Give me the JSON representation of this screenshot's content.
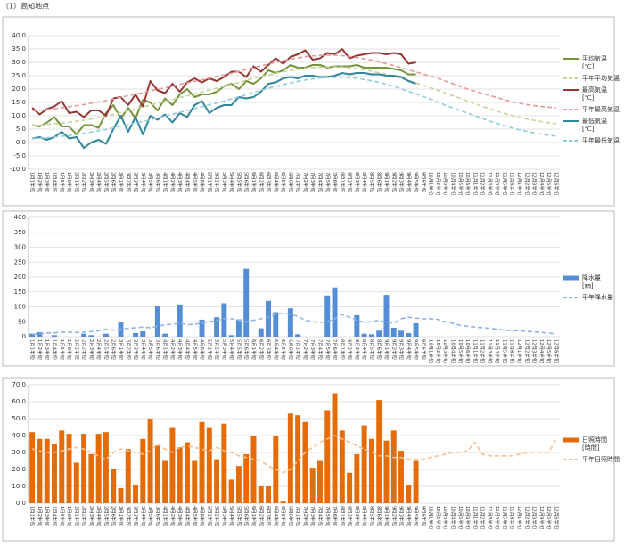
{
  "title": "（1）高知地点",
  "chart_data": [
    {
      "type": "line",
      "ylim": [
        -10,
        40
      ],
      "yticks": [
        {
          "value": 40,
          "label": "40.0"
        },
        {
          "value": 35,
          "label": "35.0"
        },
        {
          "value": 30,
          "label": "30.0"
        },
        {
          "value": 25,
          "label": "25.0"
        },
        {
          "value": 20,
          "label": "20.0"
        },
        {
          "value": 15,
          "label": "15.0"
        },
        {
          "value": 10,
          "label": "10.0"
        },
        {
          "value": 5,
          "label": "5.0"
        },
        {
          "value": 0,
          "label": "0.0"
        },
        {
          "value": -5,
          "label": "-5.0"
        },
        {
          "value": -10,
          "label": "-10.0"
        }
      ],
      "grid": true,
      "categories": [
        "1月1半旬",
        "1月2半旬",
        "1月3半旬",
        "1月4半旬",
        "1月5半旬",
        "1月6半旬",
        "2月1半旬",
        "2月2半旬",
        "2月3半旬",
        "2月4半旬",
        "2月5半旬",
        "2月6半旬",
        "3月1半旬",
        "3月2半旬",
        "3月3半旬",
        "3月4半旬",
        "3月5半旬",
        "3月6半旬",
        "4月1半旬",
        "4月2半旬",
        "4月3半旬",
        "4月4半旬",
        "4月5半旬",
        "4月6半旬",
        "5月1半旬",
        "5月2半旬",
        "5月3半旬",
        "5月4半旬",
        "5月5半旬",
        "5月6半旬",
        "6月1半旬",
        "6月2半旬",
        "6月3半旬",
        "6月4半旬",
        "6月5半旬",
        "6月6半旬",
        "7月1半旬",
        "7月2半旬",
        "7月3半旬",
        "7月4半旬",
        "7月5半旬",
        "7月6半旬",
        "8月1半旬",
        "8月2半旬",
        "8月3半旬",
        "8月4半旬",
        "8月5半旬",
        "8月6半旬",
        "9月1半旬",
        "9月2半旬",
        "9月3半旬",
        "9月4半旬",
        "9月5半旬",
        "9月6半旬",
        "10月1半旬",
        "10月2半旬",
        "10月3半旬",
        "10月4半旬",
        "10月5半旬",
        "10月6半旬",
        "11月1半旬",
        "11月2半旬",
        "11月3半旬",
        "11月4半旬",
        "11月5半旬",
        "11月6半旬",
        "12月1半旬",
        "12月2半旬",
        "12月3半旬",
        "12月4半旬",
        "12月5半旬",
        "12月6半旬"
      ],
      "series": [
        {
          "name": "平均気温",
          "unit": "[℃]",
          "type": "line",
          "dashed": false,
          "color": "#77933c",
          "values": [
            6.5,
            6,
            7.5,
            9.5,
            6,
            6,
            3,
            6.5,
            6.5,
            5.5,
            11,
            14,
            9,
            13,
            9,
            16,
            15,
            12,
            16.5,
            14,
            18,
            20,
            17,
            18,
            18,
            19,
            21,
            22,
            20,
            23,
            22,
            24,
            27,
            26,
            27,
            29,
            28,
            28,
            29,
            29,
            28,
            28.5,
            28.5,
            28.5,
            29,
            28,
            28,
            28,
            28,
            27.5,
            27,
            25.5,
            25.5,
            null,
            null,
            null,
            null,
            null,
            null,
            null,
            null,
            null,
            null,
            null,
            null,
            null,
            null,
            null,
            null,
            null,
            null,
            null
          ]
        },
        {
          "name": "平年平均気温",
          "type": "line",
          "dashed": true,
          "color": "#c3d69b",
          "values": [
            6.5,
            6.5,
            6.8,
            7,
            7.3,
            7.6,
            8,
            8.3,
            8.8,
            9.3,
            9.8,
            10.5,
            11.2,
            11.9,
            12.6,
            13.3,
            14,
            14.7,
            15.4,
            16.1,
            16.8,
            17.5,
            18.2,
            18.9,
            19.6,
            20.3,
            21,
            21.7,
            22.5,
            23.3,
            24,
            24.7,
            25.3,
            25.9,
            26.5,
            27,
            27.4,
            27.8,
            28,
            28.2,
            28.3,
            28.3,
            28.2,
            28,
            27.6,
            27.2,
            26.7,
            26.1,
            25.5,
            24.8,
            24,
            23.2,
            22.3,
            21.4,
            20.5,
            19.5,
            18.5,
            17.5,
            16.5,
            15.5,
            14.5,
            13.5,
            12.6,
            11.7,
            10.9,
            10.1,
            9.4,
            8.8,
            8.3,
            7.8,
            7.4,
            7
          ]
        },
        {
          "name": "最高気温",
          "unit": "[℃]",
          "type": "line",
          "dashed": false,
          "color": "#953735",
          "values": [
            13,
            10.5,
            12.5,
            13.5,
            15.5,
            11,
            11.5,
            9.5,
            12,
            12,
            10,
            16.5,
            17,
            14,
            18,
            13.5,
            23,
            19.5,
            18.5,
            22,
            19,
            22.5,
            24,
            22.5,
            24,
            23,
            24.5,
            26.5,
            26.5,
            24.5,
            28.5,
            26.5,
            29,
            31.5,
            29.5,
            32,
            33,
            34.5,
            31,
            31.5,
            33.5,
            33,
            35,
            31.5,
            32.5,
            33,
            33.5,
            33.5,
            33,
            33.5,
            33,
            29.5,
            30,
            null,
            null,
            null,
            null,
            null,
            null,
            null,
            null,
            null,
            null,
            null,
            null,
            null,
            null,
            null,
            null,
            null,
            null,
            null
          ]
        },
        {
          "name": "平年最高気温",
          "type": "line",
          "dashed": true,
          "color": "#e6999a",
          "values": [
            12,
            12,
            12.3,
            12.6,
            13,
            13.4,
            13.8,
            14.2,
            14.7,
            15.2,
            15.7,
            16.3,
            16.9,
            17.5,
            18.1,
            18.7,
            19.3,
            19.9,
            20.5,
            21.1,
            21.7,
            22.3,
            22.9,
            23.5,
            24.1,
            24.7,
            25.3,
            25.9,
            26.6,
            27.3,
            28,
            28.7,
            29.4,
            30,
            30.6,
            31.2,
            31.7,
            32.1,
            32.4,
            32.6,
            32.7,
            32.7,
            32.5,
            32.2,
            31.8,
            31.3,
            30.8,
            30.2,
            29.5,
            28.8,
            28,
            27.2,
            26.4,
            25.6,
            24.8,
            24,
            23,
            22,
            21,
            20,
            19.2,
            18.4,
            17.6,
            16.8,
            16,
            15.3,
            14.7,
            14.2,
            13.8,
            13.5,
            13.2,
            13
          ]
        },
        {
          "name": "最低気温",
          "unit": "[℃]",
          "type": "line",
          "dashed": false,
          "color": "#31859c",
          "values": [
            1.5,
            2,
            1,
            2,
            4,
            1.5,
            2,
            -2,
            0,
            1,
            -0.5,
            5,
            10,
            4,
            9.5,
            3,
            10,
            8.5,
            10.5,
            7.5,
            11,
            9.5,
            14,
            15.5,
            11,
            13,
            14,
            14,
            17,
            16.5,
            17,
            19,
            22,
            22.5,
            24,
            24.5,
            24,
            25,
            25,
            24.5,
            24.5,
            25,
            26,
            25.5,
            26,
            26,
            25.5,
            25.5,
            25,
            25,
            24.5,
            23,
            22,
            null,
            null,
            null,
            null,
            null,
            null,
            null,
            null,
            null,
            null,
            null,
            null,
            null,
            null,
            null,
            null,
            null,
            null,
            null
          ]
        },
        {
          "name": "平年最低気温",
          "type": "line",
          "dashed": true,
          "color": "#93cddd",
          "values": [
            1.5,
            1.6,
            1.8,
            2,
            2.3,
            2.6,
            3,
            3.4,
            3.9,
            4.4,
            4.9,
            5.5,
            6.1,
            6.7,
            7.3,
            7.9,
            8.5,
            9.2,
            9.9,
            10.6,
            11.3,
            12,
            12.7,
            13.4,
            14.1,
            14.8,
            15.5,
            16.3,
            17.1,
            17.9,
            18.7,
            19.5,
            20.3,
            21,
            21.7,
            22.3,
            22.9,
            23.4,
            23.8,
            24.1,
            24.3,
            24.4,
            24.4,
            24.3,
            24,
            23.6,
            23.1,
            22.5,
            21.8,
            21,
            20.1,
            19.2,
            18.2,
            17.2,
            16.2,
            15.1,
            14,
            13,
            12,
            11,
            10,
            9,
            8,
            7.1,
            6.3,
            5.5,
            4.8,
            4.2,
            3.6,
            3.1,
            2.7,
            2.4
          ]
        }
      ]
    },
    {
      "type": "bar",
      "ylim": [
        0,
        400
      ],
      "yticks": [
        0,
        50,
        100,
        150,
        200,
        250,
        300,
        350,
        400
      ],
      "grid": true,
      "categories": [
        "1月1半旬",
        "1月2半旬",
        "1月3半旬",
        "1月4半旬",
        "1月5半旬",
        "1月6半旬",
        "2月1半旬",
        "2月2半旬",
        "2月3半旬",
        "2月4半旬",
        "2月5半旬",
        "2月6半旬",
        "3月1半旬",
        "3月2半旬",
        "3月3半旬",
        "3月4半旬",
        "3月5半旬",
        "3月6半旬",
        "4月1半旬",
        "4月2半旬",
        "4月3半旬",
        "4月4半旬",
        "4月5半旬",
        "4月6半旬",
        "5月1半旬",
        "5月2半旬",
        "5月3半旬",
        "5月4半旬",
        "5月5半旬",
        "5月6半旬",
        "6月1半旬",
        "6月2半旬",
        "6月3半旬",
        "6月4半旬",
        "6月5半旬",
        "6月6半旬",
        "7月1半旬",
        "7月2半旬",
        "7月3半旬",
        "7月4半旬",
        "7月5半旬",
        "7月6半旬",
        "8月1半旬",
        "8月2半旬",
        "8月3半旬",
        "8月4半旬",
        "8月5半旬",
        "8月6半旬",
        "9月1半旬",
        "9月2半旬",
        "9月3半旬",
        "9月4半旬",
        "9月5半旬",
        "9月6半旬",
        "10月1半旬",
        "10月2半旬",
        "10月3半旬",
        "10月4半旬",
        "10月5半旬",
        "10月6半旬",
        "11月1半旬",
        "11月2半旬",
        "11月3半旬",
        "11月4半旬",
        "11月5半旬",
        "11月6半旬",
        "12月1半旬",
        "12月2半旬",
        "12月3半旬",
        "12月4半旬",
        "12月5半旬",
        "12月6半旬"
      ],
      "series": [
        {
          "name": "降水量",
          "unit": "[㎜]",
          "type": "bar",
          "color": "#558ed5",
          "values": [
            10,
            15,
            0,
            5,
            0,
            0,
            0,
            10,
            5,
            0,
            10,
            0,
            50,
            0,
            12,
            18,
            0,
            103,
            10,
            0,
            108,
            0,
            0,
            57,
            0,
            65,
            112,
            5,
            58,
            228,
            0,
            28,
            120,
            82,
            0,
            95,
            8,
            0,
            0,
            0,
            138,
            165,
            0,
            0,
            72,
            10,
            8,
            20,
            140,
            30,
            20,
            12,
            45,
            null,
            null,
            null,
            null,
            null,
            null,
            null,
            null,
            null,
            null,
            null,
            null,
            null,
            null,
            null,
            null,
            null,
            null,
            null
          ]
        },
        {
          "name": "平年降水量",
          "type": "line",
          "dashed": true,
          "color": "#8eb4e3",
          "values": [
            8,
            10,
            12,
            13,
            15,
            15,
            14,
            15,
            17,
            20,
            25,
            22,
            25,
            28,
            30,
            32,
            30,
            35,
            40,
            42,
            45,
            40,
            42,
            45,
            50,
            55,
            60,
            60,
            55,
            50,
            55,
            60,
            65,
            75,
            78,
            75,
            68,
            55,
            50,
            48,
            50,
            60,
            75,
            65,
            55,
            48,
            50,
            55,
            48,
            45,
            60,
            65,
            62,
            60,
            60,
            58,
            50,
            45,
            38,
            35,
            32,
            30,
            28,
            25,
            22,
            20,
            20,
            18,
            16,
            14,
            12,
            10
          ]
        }
      ]
    },
    {
      "type": "bar",
      "ylim": [
        0,
        70
      ],
      "yticks": [
        {
          "value": 0,
          "label": "0.0"
        },
        {
          "value": 10,
          "label": "10.0"
        },
        {
          "value": 20,
          "label": "20.0"
        },
        {
          "value": 30,
          "label": "30.0"
        },
        {
          "value": 40,
          "label": "40.0"
        },
        {
          "value": 50,
          "label": "50.0"
        },
        {
          "value": 60,
          "label": "60.0"
        },
        {
          "value": 70,
          "label": "70.0"
        }
      ],
      "grid": true,
      "categories": [
        "1月1半旬",
        "1月2半旬",
        "1月3半旬",
        "1月4半旬",
        "1月5半旬",
        "1月6半旬",
        "2月1半旬",
        "2月2半旬",
        "2月3半旬",
        "2月4半旬",
        "2月5半旬",
        "2月6半旬",
        "3月1半旬",
        "3月2半旬",
        "3月3半旬",
        "3月4半旬",
        "3月5半旬",
        "3月6半旬",
        "4月1半旬",
        "4月2半旬",
        "4月3半旬",
        "4月4半旬",
        "4月5半旬",
        "4月6半旬",
        "5月1半旬",
        "5月2半旬",
        "5月3半旬",
        "5月4半旬",
        "5月5半旬",
        "5月6半旬",
        "6月1半旬",
        "6月2半旬",
        "6月3半旬",
        "6月4半旬",
        "6月5半旬",
        "6月6半旬",
        "7月1半旬",
        "7月2半旬",
        "7月3半旬",
        "7月4半旬",
        "7月5半旬",
        "7月6半旬",
        "8月1半旬",
        "8月2半旬",
        "8月3半旬",
        "8月4半旬",
        "8月5半旬",
        "8月6半旬",
        "9月1半旬",
        "9月2半旬",
        "9月3半旬",
        "9月4半旬",
        "9月5半旬",
        "9月6半旬",
        "10月1半旬",
        "10月2半旬",
        "10月3半旬",
        "10月4半旬",
        "10月5半旬",
        "10月6半旬",
        "11月1半旬",
        "11月2半旬",
        "11月3半旬",
        "11月4半旬",
        "11月5半旬",
        "11月6半旬",
        "12月1半旬",
        "12月2半旬",
        "12月3半旬",
        "12月4半旬",
        "12月5半旬",
        "12月6半旬"
      ],
      "series": [
        {
          "name": "日照時間",
          "unit": "[時間]",
          "type": "bar",
          "color": "#e36c09",
          "values": [
            42,
            38,
            38,
            35,
            43,
            41,
            24,
            41,
            29,
            41,
            42,
            20,
            9,
            32,
            11,
            38,
            50,
            34,
            25,
            45,
            33,
            36,
            25,
            48,
            45,
            26,
            47,
            14,
            22,
            29,
            40,
            10,
            10,
            40,
            1,
            53,
            52,
            48,
            21,
            25,
            55,
            65,
            43,
            18,
            29,
            46,
            38,
            61,
            37,
            43,
            31,
            11,
            25,
            null,
            null,
            null,
            null,
            null,
            null,
            null,
            null,
            null,
            null,
            null,
            null,
            null,
            null,
            null,
            null,
            null,
            null,
            null
          ]
        },
        {
          "name": "平年日照時間",
          "type": "line",
          "dashed": true,
          "color": "#fac090",
          "values": [
            32,
            31,
            30,
            30,
            31,
            32,
            33,
            32,
            30,
            28,
            26,
            30,
            32,
            31,
            30,
            29,
            31,
            35,
            32,
            30,
            33,
            34,
            33,
            32,
            31,
            33,
            31,
            30,
            28,
            27,
            26,
            25,
            22,
            20,
            18,
            20,
            25,
            30,
            33,
            36,
            38,
            40,
            38,
            36,
            34,
            32,
            30,
            28,
            28,
            27,
            27,
            26,
            26,
            26,
            27,
            28,
            29,
            30,
            30,
            31,
            36,
            29,
            28,
            28,
            28,
            28,
            29,
            30,
            30,
            30,
            30,
            38
          ]
        }
      ]
    }
  ]
}
